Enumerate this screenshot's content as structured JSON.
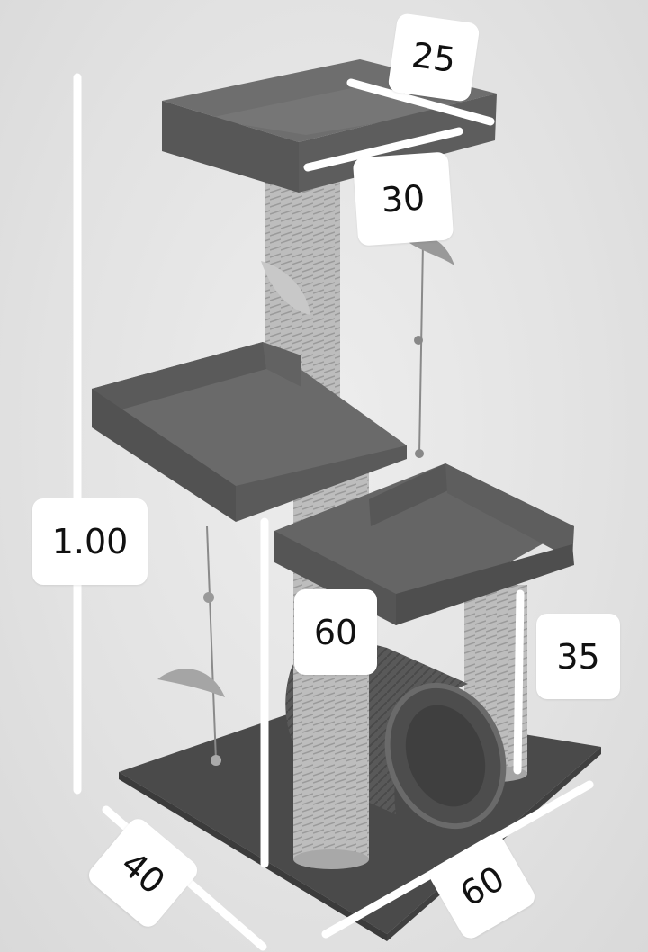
{
  "product": "cat tree",
  "colors": {
    "background": "#e4e4e4",
    "carpet": "#5a5a5a",
    "carpet_dark": "#474747",
    "sisal": "#b9b9b9",
    "guide_line": "#ffffff",
    "label_bg": "#ffffff",
    "label_text": "#111111"
  },
  "dimensions": {
    "top_depth": "25",
    "top_width": "30",
    "total_height": "1.00",
    "post_height": "60",
    "small_post_height": "35",
    "base_depth": "40",
    "base_width": "60"
  }
}
